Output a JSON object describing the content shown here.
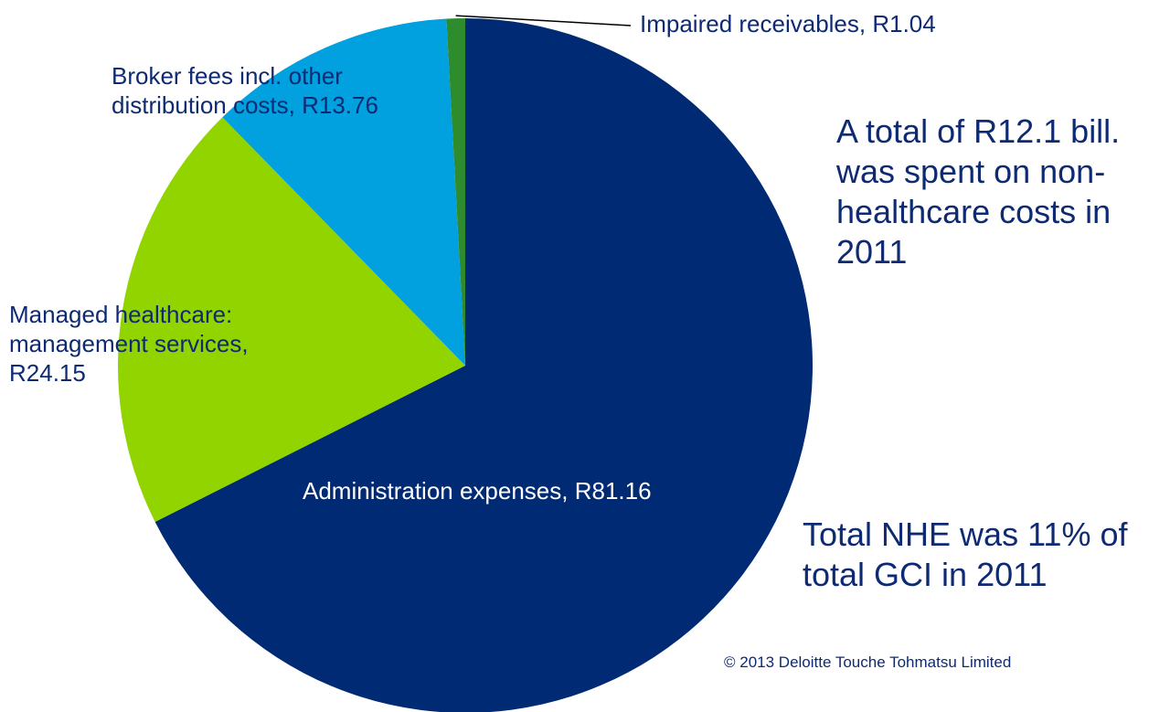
{
  "chart_data": {
    "type": "pie",
    "title": "",
    "slices": [
      {
        "name": "Administration expenses",
        "value": 81.16,
        "label": "Administration expenses, R81.16",
        "color": "#002a73"
      },
      {
        "name": "Managed healthcare: management services",
        "value": 24.15,
        "label": "Managed healthcare:\nmanagement services,\nR24.15",
        "color": "#92d400"
      },
      {
        "name": "Broker fees incl. other distribution costs",
        "value": 13.76,
        "label": "Broker fees incl. other\ndistribution costs, R13.76",
        "color": "#00a1de"
      },
      {
        "name": "Impaired receivables",
        "value": 1.04,
        "label": "Impaired receivables, R1.04",
        "color": "#2e8b2e"
      }
    ]
  },
  "notes": {
    "total_spent": "A total of R12.1 bill.\nwas spent on   non-\nhealthcare costs in\n2011",
    "nhe_share": "Total NHE was 11% of\ntotal GCI in 2011"
  },
  "copyright": "© 2013 Deloitte Touche Tohmatsu Limited"
}
